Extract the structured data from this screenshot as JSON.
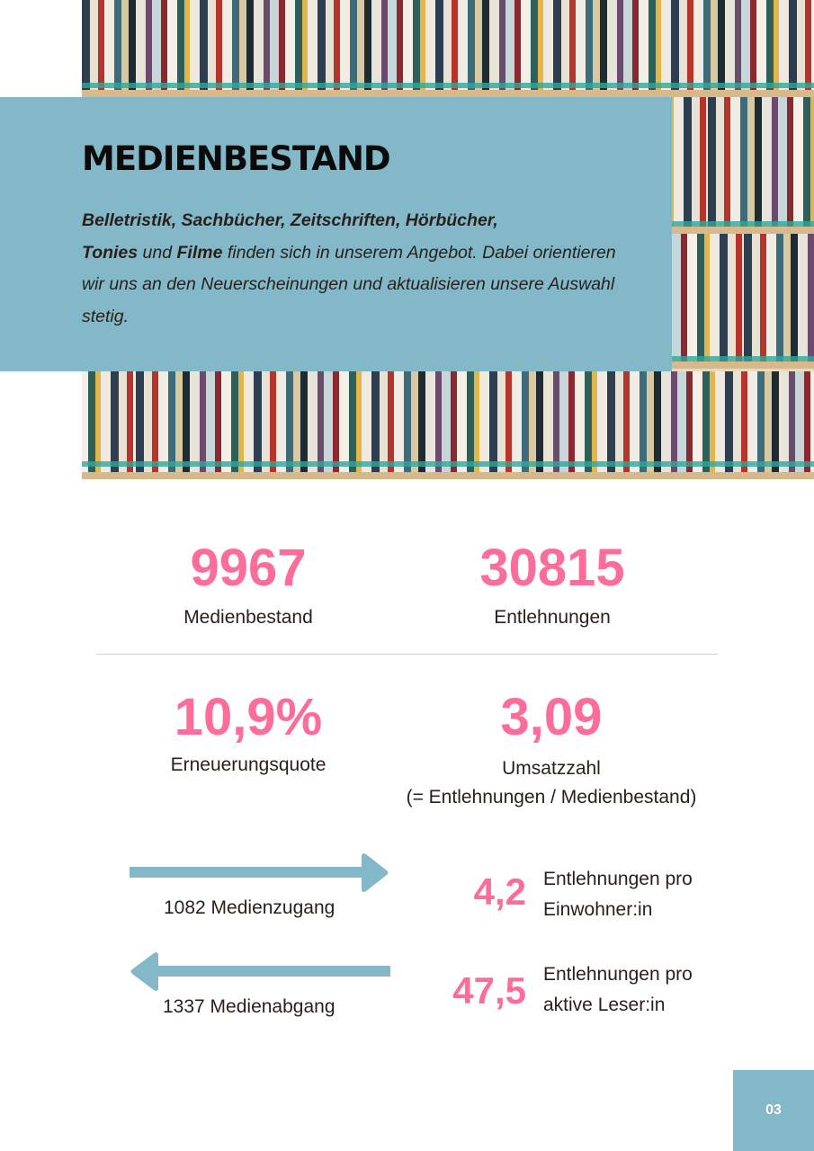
{
  "header": {
    "title": "MEDIENBESTAND",
    "intro": {
      "b1": "Belletristik, Sachbücher, Zeitschriften, Hörbücher,",
      "b2": "Tonies",
      "t1": " und ",
      "b3": "Filme",
      "t2": " finden sich in unserem Angebot. Dabei orientieren wir uns an den Neuerscheinungen und aktualisieren unsere Auswahl stetig."
    }
  },
  "stats": {
    "medienbestand": {
      "value": "9967",
      "label": "Medienbestand"
    },
    "entlehnungen": {
      "value": "30815",
      "label": "Entlehnungen"
    },
    "erneuerungsquote": {
      "value": "10,9%",
      "label": "Erneuerungsquote"
    },
    "umsatzzahl": {
      "value": "3,09",
      "label": "Umsatzzahl",
      "note": "(= Entlehnungen / Medienbestand)"
    }
  },
  "flows": {
    "zugang": {
      "label": "1082 Medienzugang",
      "direction": "right"
    },
    "abgang": {
      "label": "1337 Medienabgang",
      "direction": "left"
    }
  },
  "ratios": {
    "per_resident": {
      "value": "4,2",
      "line1": "Entlehnungen pro",
      "line2": "Einwohner:in"
    },
    "per_reader": {
      "value": "47,5",
      "line1": "Entlehnungen pro",
      "line2": "aktive Leser:in"
    }
  },
  "page_number": "03",
  "colors": {
    "accent": "#fd6d99",
    "panel": "#82b8c7"
  }
}
